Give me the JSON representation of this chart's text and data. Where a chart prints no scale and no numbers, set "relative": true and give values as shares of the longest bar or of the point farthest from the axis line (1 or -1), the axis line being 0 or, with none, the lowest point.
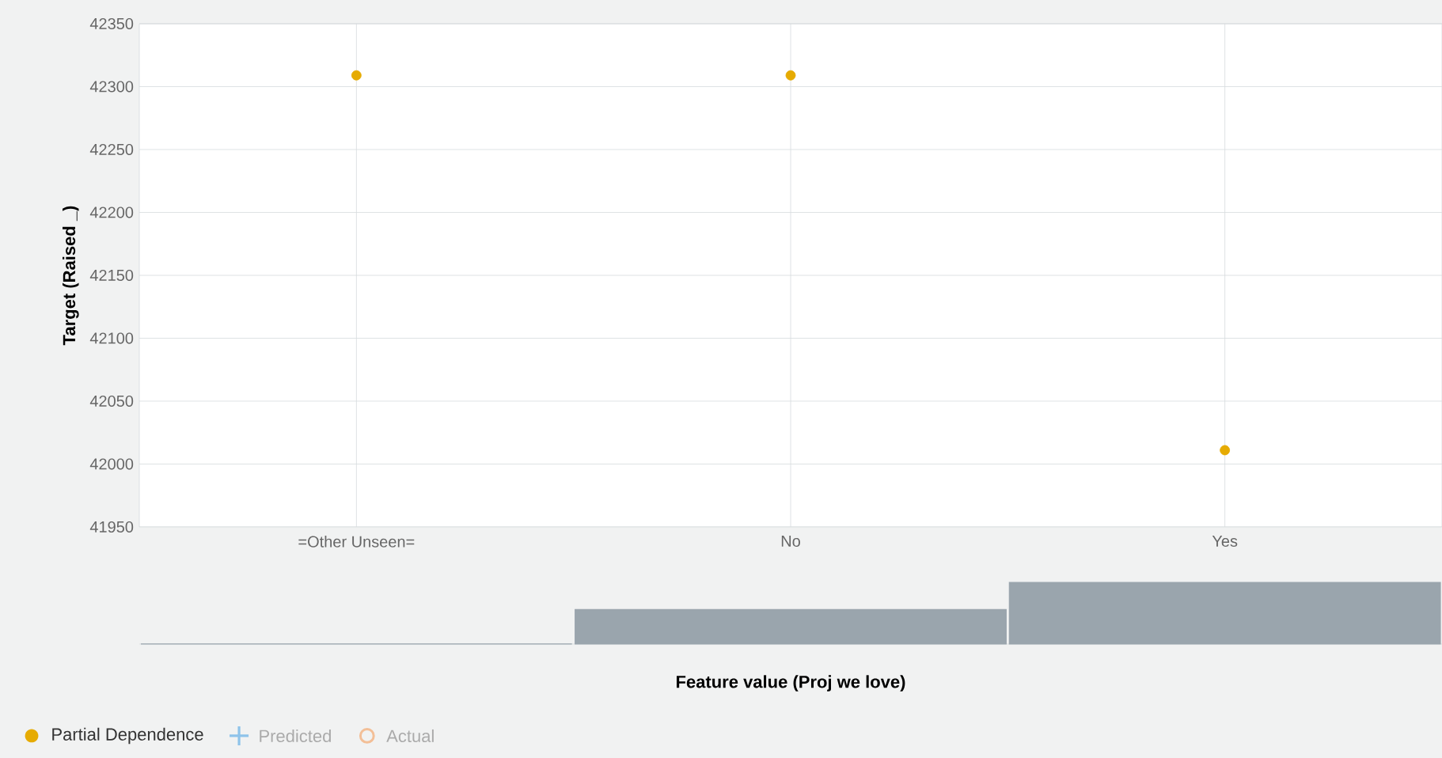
{
  "chart_data": [
    {
      "type": "scatter",
      "ylabel": "Target (Raised _)",
      "categories": [
        "=Other Unseen=",
        "No",
        "Yes"
      ],
      "series": [
        {
          "name": "Partial Dependence",
          "color": "#e6ab02",
          "marker": "circle",
          "values": [
            42309,
            42309,
            42011
          ]
        },
        {
          "name": "Predicted",
          "color": "#8ec3ea",
          "marker": "cross",
          "values": [
            null,
            null,
            null
          ]
        },
        {
          "name": "Actual",
          "color": "#f3bf97",
          "marker": "circle",
          "values": [
            null,
            null,
            null
          ]
        }
      ],
      "ylim": [
        41950,
        42350
      ],
      "yticks": [
        41950,
        42000,
        42050,
        42100,
        42150,
        42200,
        42250,
        42300,
        42350
      ],
      "grid": true,
      "legend": "bottom"
    },
    {
      "type": "bar",
      "xlabel": "Feature value (Proj we love)",
      "categories": [
        null,
        null,
        null
      ],
      "relative": true,
      "color": "#9aa5ad",
      "values": [
        0,
        0.56,
        1
      ]
    }
  ]
}
